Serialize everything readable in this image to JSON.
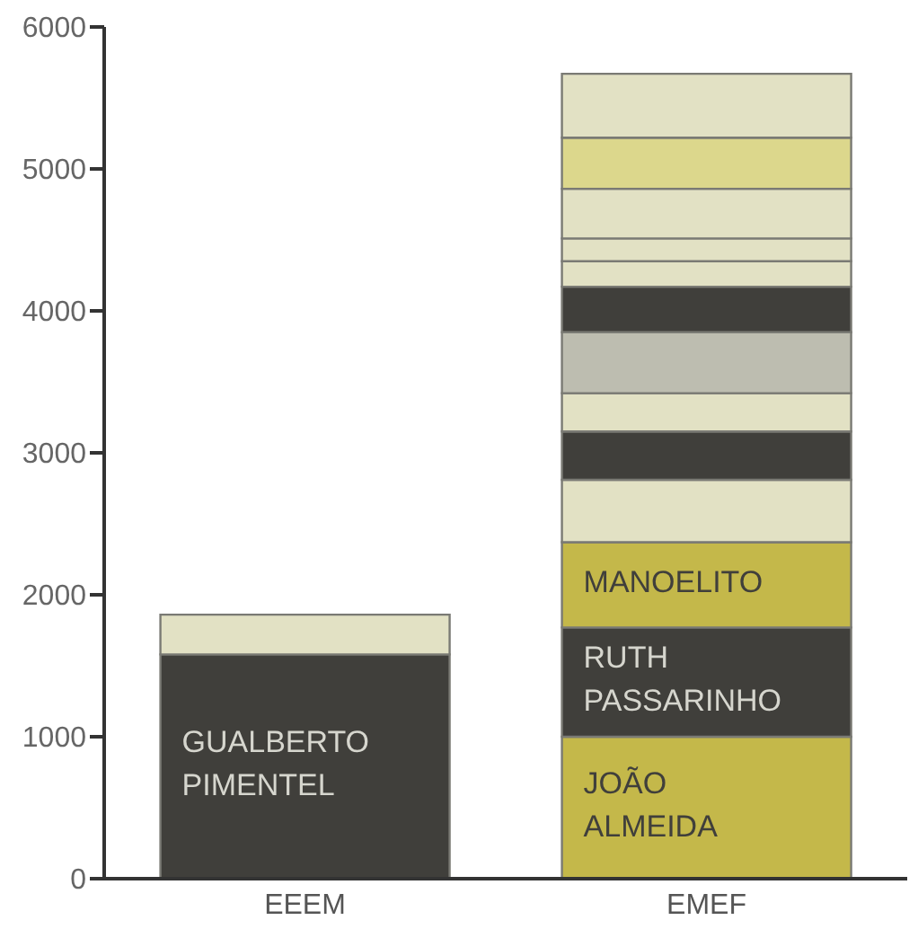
{
  "chart_data": {
    "type": "bar",
    "stacked": true,
    "categories": [
      "EEEM",
      "EMEF"
    ],
    "ylim": [
      0,
      6000
    ],
    "yticks": [
      0,
      1000,
      2000,
      3000,
      4000,
      5000,
      6000
    ],
    "series": [
      {
        "values": [
          1580,
          1000
        ],
        "colors": [
          "#403f3b",
          "#c4b84a"
        ],
        "value_labels": [
          "GUALBERTO PIMENTEL",
          "JOÃO ALMEIDA"
        ]
      },
      {
        "values": [
          280,
          770
        ],
        "colors": [
          "#e2e1c4",
          "#403f3b"
        ],
        "value_labels": [
          null,
          "RUTH PASSARINHO"
        ]
      },
      {
        "values": [
          null,
          600
        ],
        "colors": [
          null,
          "#c4b84a"
        ],
        "value_labels": [
          null,
          "MANOELITO"
        ]
      },
      {
        "values": [
          null,
          440
        ],
        "colors": [
          null,
          "#e2e1c4"
        ]
      },
      {
        "values": [
          null,
          340
        ],
        "colors": [
          null,
          "#403f3b"
        ]
      },
      {
        "values": [
          null,
          270
        ],
        "colors": [
          null,
          "#e2e1c4"
        ]
      },
      {
        "values": [
          null,
          430
        ],
        "colors": [
          null,
          "#bdbdb0"
        ]
      },
      {
        "values": [
          null,
          320
        ],
        "colors": [
          null,
          "#403f3b"
        ]
      },
      {
        "values": [
          null,
          180
        ],
        "colors": [
          null,
          "#e2e1c4"
        ]
      },
      {
        "values": [
          null,
          160
        ],
        "colors": [
          null,
          "#e2e1c4"
        ]
      },
      {
        "values": [
          null,
          350
        ],
        "colors": [
          null,
          "#e2e1c4"
        ]
      },
      {
        "values": [
          null,
          360
        ],
        "colors": [
          null,
          "#dcd78c"
        ]
      },
      {
        "values": [
          null,
          450
        ],
        "colors": [
          null,
          "#e2e1c4"
        ]
      }
    ]
  }
}
